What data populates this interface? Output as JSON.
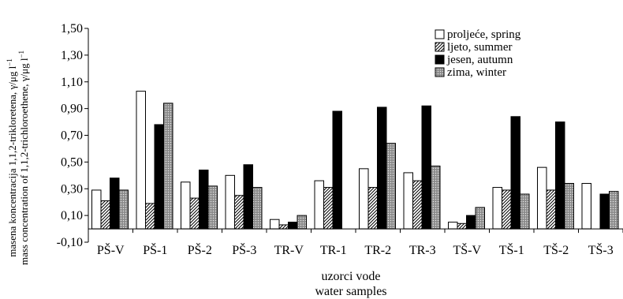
{
  "chart_data": {
    "type": "bar",
    "title": "",
    "ylabel_lines": [
      "masena koncentracija 1,1,2-trikloretena, γ/μg l",
      "mass concentration of 1,1,2-trichloroethene, γ/μg l"
    ],
    "ylabel_superscript": "−1",
    "xlabel_lines": [
      "uzorci vode",
      "water samples"
    ],
    "ylim": [
      -0.1,
      1.5
    ],
    "yticks": [
      "-0,10",
      "0,10",
      "0,30",
      "0,50",
      "0,70",
      "0,90",
      "1,10",
      "1,30",
      "1,50"
    ],
    "categories": [
      "PŠ-V",
      "PŠ-1",
      "PŠ-2",
      "PŠ-3",
      "TR-V",
      "TR-1",
      "TR-2",
      "TR-3",
      "TŠ-V",
      "TŠ-1",
      "TŠ-2",
      "TŠ-3"
    ],
    "series": [
      {
        "name": "proljeće, spring",
        "fill": "white",
        "values": [
          0.29,
          1.03,
          0.35,
          0.4,
          0.07,
          0.36,
          0.45,
          0.42,
          0.05,
          0.31,
          0.46,
          0.34
        ]
      },
      {
        "name": "ljeto, summer",
        "fill": "hatch",
        "values": [
          0.21,
          0.19,
          0.23,
          0.25,
          0.03,
          0.31,
          0.31,
          0.36,
          0.04,
          0.29,
          0.29,
          null
        ]
      },
      {
        "name": "jesen, autumn",
        "fill": "black",
        "values": [
          0.38,
          0.78,
          0.44,
          0.48,
          0.05,
          0.88,
          0.91,
          0.92,
          0.1,
          0.84,
          0.8,
          0.26
        ]
      },
      {
        "name": "zima, winter",
        "fill": "dots",
        "values": [
          0.29,
          0.94,
          0.32,
          0.31,
          0.1,
          null,
          0.64,
          0.47,
          0.16,
          0.26,
          0.34,
          0.28
        ]
      }
    ],
    "grid": false,
    "legend_position": "top-right",
    "baseline": 0
  }
}
